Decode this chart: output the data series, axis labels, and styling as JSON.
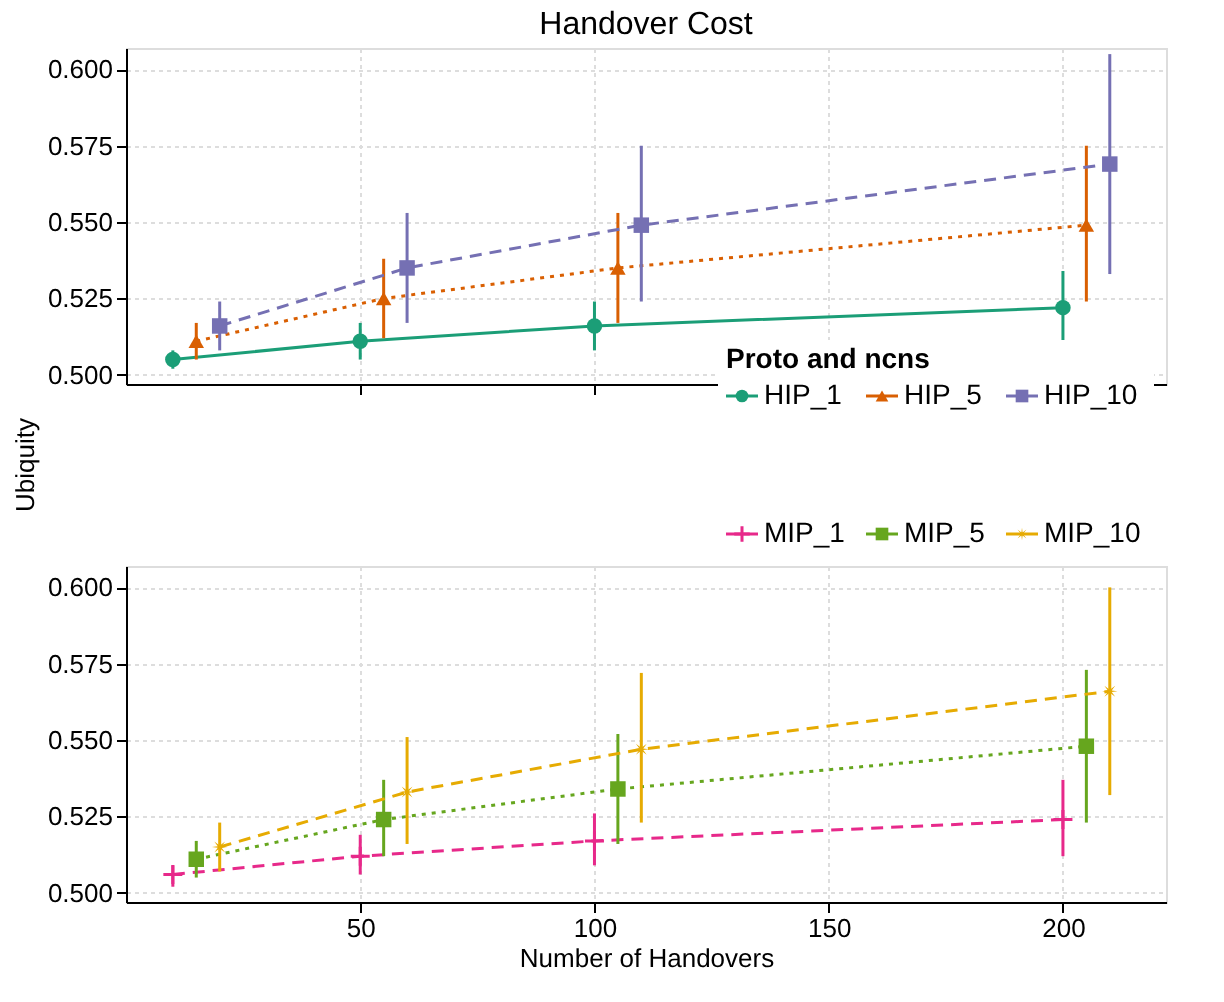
{
  "chart_data": [
    {
      "type": "line",
      "title": "Handover Cost",
      "ylabel": "Ubiquity",
      "legend_title": "Proto and ncns",
      "legend": "bottom right",
      "grid": true,
      "xlim": [
        0,
        222
      ],
      "xticks": [
        {
          "value": 50,
          "label": null
        },
        {
          "value": 100,
          "label": null
        },
        {
          "value": 150,
          "label": null
        },
        {
          "value": 200,
          "label": null
        }
      ],
      "tick_labels": "y",
      "ylim": [
        0.497,
        0.607
      ],
      "yticks": [
        {
          "value": 0.5,
          "label": "0.500"
        },
        {
          "value": 0.525,
          "label": "0.525"
        },
        {
          "value": 0.55,
          "label": "0.550"
        },
        {
          "value": 0.575,
          "label": "0.575"
        },
        {
          "value": 0.6,
          "label": "0.600"
        }
      ],
      "series": [
        {
          "name": "HIP_1",
          "color": "#1b9e77",
          "marker": "circle",
          "line_style": "solid",
          "x": [
            10,
            50,
            100,
            200
          ],
          "values": [
            0.505,
            0.511,
            0.516,
            0.522
          ],
          "errors": [
            [
              0.502,
              0.508
            ],
            [
              0.505,
              0.517
            ],
            [
              0.508,
              0.524
            ],
            [
              0.511,
              0.534
            ]
          ]
        },
        {
          "name": "HIP_5",
          "color": "#d95f02",
          "marker": "triangle",
          "line_style": "dotted",
          "x": [
            15,
            55,
            105,
            205
          ],
          "values": [
            0.511,
            0.525,
            0.535,
            0.549
          ],
          "errors": [
            [
              0.505,
              0.517
            ],
            [
              0.512,
              0.538
            ],
            [
              0.517,
              0.553
            ],
            [
              0.524,
              0.575
            ]
          ]
        },
        {
          "name": "HIP_10",
          "color": "#7570b3",
          "marker": "square",
          "line_style": "dashed",
          "x": [
            20,
            60,
            110,
            210
          ],
          "values": [
            0.516,
            0.535,
            0.549,
            0.569
          ],
          "errors": [
            [
              0.508,
              0.524
            ],
            [
              0.517,
              0.553
            ],
            [
              0.524,
              0.575
            ],
            [
              0.533,
              0.605
            ]
          ]
        }
      ]
    },
    {
      "type": "line",
      "xlabel": "Number of Handovers",
      "grid": true,
      "legend": "top right",
      "xlim": [
        0,
        222
      ],
      "xticks": [
        50,
        100,
        150,
        200
      ],
      "ylim": [
        0.497,
        0.607
      ],
      "yticks": [
        {
          "value": 0.5,
          "label": "0.500"
        },
        {
          "value": 0.525,
          "label": "0.525"
        },
        {
          "value": 0.55,
          "label": "0.550"
        },
        {
          "value": 0.575,
          "label": "0.575"
        },
        {
          "value": 0.6,
          "label": "0.600"
        }
      ],
      "series": [
        {
          "name": "MIP_1",
          "color": "#e7298a",
          "marker": "cross",
          "line_style": "dashed",
          "x": [
            10,
            50,
            100,
            200
          ],
          "values": [
            0.506,
            0.512,
            0.517,
            0.524
          ],
          "errors": [
            [
              0.502,
              0.509
            ],
            [
              0.506,
              0.519
            ],
            [
              0.509,
              0.526
            ],
            [
              0.512,
              0.537
            ]
          ]
        },
        {
          "name": "MIP_5",
          "color": "#66a61e",
          "marker": "square",
          "line_style": "dotted",
          "x": [
            15,
            55,
            105,
            205
          ],
          "values": [
            0.511,
            0.524,
            0.534,
            0.548
          ],
          "errors": [
            [
              0.505,
              0.517
            ],
            [
              0.512,
              0.537
            ],
            [
              0.516,
              0.552
            ],
            [
              0.523,
              0.573
            ]
          ]
        },
        {
          "name": "MIP_10",
          "color": "#e6ab02",
          "marker": "star",
          "line_style": "dashed",
          "x": [
            20,
            60,
            110,
            210
          ],
          "values": [
            0.515,
            0.533,
            0.547,
            0.566
          ],
          "errors": [
            [
              0.507,
              0.523
            ],
            [
              0.516,
              0.551
            ],
            [
              0.523,
              0.572
            ],
            [
              0.532,
              0.6
            ]
          ]
        }
      ]
    }
  ]
}
